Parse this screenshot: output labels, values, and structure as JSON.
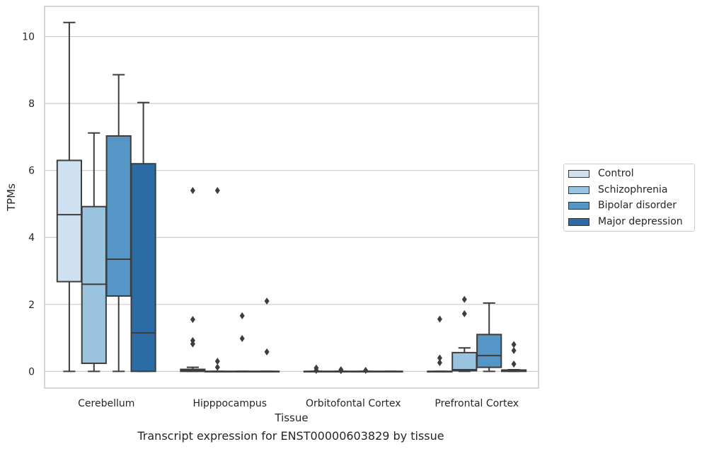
{
  "chart_data": {
    "type": "boxplot",
    "title": "Transcript expression for ENST00000603829 by tissue",
    "xlabel": "Tissue",
    "ylabel": "TPMs",
    "ylim": [
      -0.5,
      10.9
    ],
    "yticks": [
      0,
      2,
      4,
      6,
      8,
      10
    ],
    "grid": "horizontal",
    "legend_position": "right",
    "categories": [
      "Cerebellum",
      "Hipppocampus",
      "Orbitofontal Cortex",
      "Prefrontal Cortex"
    ],
    "series": [
      {
        "name": "Control",
        "color": "#cfe0f1",
        "boxes": [
          {
            "min": 0,
            "q1": 2.68,
            "median": 4.68,
            "q3": 6.3,
            "max": 10.42,
            "outliers": []
          },
          {
            "min": 0,
            "q1": 0,
            "median": 0.02,
            "q3": 0.06,
            "max": 0.12,
            "outliers": [
              0.82,
              0.92,
              1.55,
              5.4
            ]
          },
          {
            "min": 0,
            "q1": 0,
            "median": 0,
            "q3": 0,
            "max": 0,
            "outliers": [
              0.03,
              0.1
            ]
          },
          {
            "min": 0,
            "q1": 0,
            "median": 0,
            "q3": 0,
            "max": 0,
            "outliers": [
              0.26,
              0.4,
              1.56
            ]
          }
        ]
      },
      {
        "name": "Schizophrenia",
        "color": "#9ac3df",
        "boxes": [
          {
            "min": 0,
            "q1": 0.24,
            "median": 2.6,
            "q3": 4.92,
            "max": 7.12,
            "outliers": []
          },
          {
            "min": 0,
            "q1": 0,
            "median": 0,
            "q3": 0,
            "max": 0,
            "outliers": [
              0.12,
              0.3,
              5.4
            ]
          },
          {
            "min": 0,
            "q1": 0,
            "median": 0,
            "q3": 0,
            "max": 0,
            "outliers": [
              0.02,
              0.05
            ]
          },
          {
            "min": 0,
            "q1": 0.02,
            "median": 0.05,
            "q3": 0.56,
            "max": 0.7,
            "outliers": [
              1.72,
              2.15
            ]
          }
        ]
      },
      {
        "name": "Bipolar disorder",
        "color": "#5596c6",
        "boxes": [
          {
            "min": 0,
            "q1": 2.25,
            "median": 3.35,
            "q3": 7.03,
            "max": 8.86,
            "outliers": []
          },
          {
            "min": 0,
            "q1": 0,
            "median": 0,
            "q3": 0,
            "max": 0,
            "outliers": [
              0.98,
              1.66
            ]
          },
          {
            "min": 0,
            "q1": 0,
            "median": 0,
            "q3": 0,
            "max": 0,
            "outliers": [
              0.03
            ]
          },
          {
            "min": 0,
            "q1": 0.12,
            "median": 0.47,
            "q3": 1.1,
            "max": 2.04,
            "outliers": []
          }
        ]
      },
      {
        "name": "Major depression",
        "color": "#2b6ba6",
        "boxes": [
          {
            "min": 0,
            "q1": 0,
            "median": 1.15,
            "q3": 6.2,
            "max": 8.03,
            "outliers": []
          },
          {
            "min": 0,
            "q1": 0,
            "median": 0,
            "q3": 0,
            "max": 0,
            "outliers": [
              0.58,
              2.1
            ]
          },
          {
            "min": 0,
            "q1": 0,
            "median": 0,
            "q3": 0,
            "max": 0,
            "outliers": []
          },
          {
            "min": 0,
            "q1": 0,
            "median": 0.01,
            "q3": 0.04,
            "max": 0.05,
            "outliers": [
              0.22,
              0.62,
              0.8
            ]
          }
        ]
      }
    ]
  }
}
